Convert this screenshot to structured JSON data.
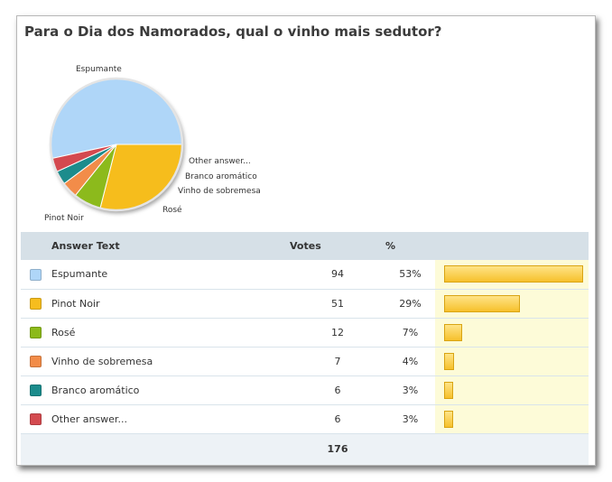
{
  "title": "Para o Dia dos Namorados, qual o vinho mais sedutor?",
  "table": {
    "headers": {
      "answer": "Answer Text",
      "votes": "Votes",
      "percent": "%"
    },
    "total": "176",
    "rows": [
      {
        "label": "Espumante",
        "votes": "94",
        "percent": "53%",
        "color": "#afd6f8"
      },
      {
        "label": "Pinot Noir",
        "votes": "51",
        "percent": "29%",
        "color": "#f6bd1e"
      },
      {
        "label": "Rosé",
        "votes": "12",
        "percent": "7%",
        "color": "#8cba1a"
      },
      {
        "label": "Vinho de sobremesa",
        "votes": "7",
        "percent": "4%",
        "color": "#f28c48"
      },
      {
        "label": "Branco aromático",
        "votes": "6",
        "percent": "3%",
        "color": "#1b8c8c"
      },
      {
        "label": "Other answer...",
        "votes": "6",
        "percent": "3%",
        "color": "#d44a4f"
      }
    ]
  },
  "chart_data": {
    "type": "pie",
    "title": "Para o Dia dos Namorados, qual o vinho mais sedutor?",
    "categories": [
      "Espumante",
      "Pinot Noir",
      "Rosé",
      "Vinho de sobremesa",
      "Branco aromático",
      "Other answer..."
    ],
    "values": [
      94,
      51,
      12,
      7,
      6,
      6
    ],
    "percent": [
      53,
      29,
      7,
      4,
      3,
      3
    ],
    "colors": [
      "#afd6f8",
      "#f6bd1e",
      "#8cba1a",
      "#f28c48",
      "#1b8c8c",
      "#d44a4f"
    ],
    "total": 176
  }
}
